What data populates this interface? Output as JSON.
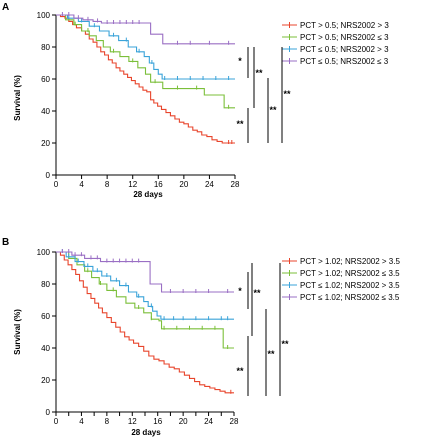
{
  "figure": {
    "panels": [
      {
        "letter": "A",
        "chart_data": {
          "type": "line",
          "subtype": "kaplan-meier",
          "xlabel": "28 days",
          "ylabel": "Survival (%)",
          "xlim": [
            0,
            28
          ],
          "ylim": [
            0,
            100
          ],
          "x_ticks": [
            0,
            4,
            8,
            12,
            16,
            20,
            24,
            28
          ],
          "y_ticks": [
            0,
            20,
            40,
            60,
            80,
            100
          ],
          "grid": false,
          "legend_position": "top-right",
          "series": [
            {
              "name": "PCT > 0.5; NRS2002 > 3",
              "color": "#e8452c",
              "points": [
                [
                  0,
                  100
                ],
                [
                  0.7,
                  99
                ],
                [
                  1.4,
                  98
                ],
                [
                  2,
                  96
                ],
                [
                  2.6,
                  94
                ],
                [
                  3.2,
                  92
                ],
                [
                  4,
                  90
                ],
                [
                  4.6,
                  88
                ],
                [
                  5.2,
                  85
                ],
                [
                  5.8,
                  83
                ],
                [
                  6.4,
                  80
                ],
                [
                  7,
                  77
                ],
                [
                  7.6,
                  75
                ],
                [
                  8.2,
                  72
                ],
                [
                  8.8,
                  70
                ],
                [
                  9.4,
                  67
                ],
                [
                  10,
                  65
                ],
                [
                  10.6,
                  63
                ],
                [
                  11.2,
                  61
                ],
                [
                  11.8,
                  59
                ],
                [
                  12.4,
                  57
                ],
                [
                  13,
                  55
                ],
                [
                  13.6,
                  53
                ],
                [
                  14.2,
                  52
                ],
                [
                  14.8,
                  47
                ],
                [
                  15.3,
                  45
                ],
                [
                  15.9,
                  43
                ],
                [
                  16.5,
                  41
                ],
                [
                  17.2,
                  39
                ],
                [
                  17.9,
                  37
                ],
                [
                  18.6,
                  35
                ],
                [
                  19.3,
                  33
                ],
                [
                  20,
                  32
                ],
                [
                  20.7,
                  30
                ],
                [
                  21.4,
                  28
                ],
                [
                  22.1,
                  27
                ],
                [
                  22.8,
                  25
                ],
                [
                  23.6,
                  24
                ],
                [
                  24.4,
                  22
                ],
                [
                  25.2,
                  21
                ],
                [
                  26,
                  20
                ],
                [
                  28,
                  20
                ]
              ],
              "censor_x": [
                27,
                27.5
              ]
            },
            {
              "name": "PCT > 0.5; NRS2002 ≤ 3",
              "color": "#7bbf3a",
              "points": [
                [
                  0,
                  100
                ],
                [
                  1.5,
                  97
                ],
                [
                  2.8,
                  94
                ],
                [
                  4,
                  90
                ],
                [
                  5.2,
                  87
                ],
                [
                  6.3,
                  84
                ],
                [
                  7.4,
                  80
                ],
                [
                  8.5,
                  77
                ],
                [
                  10,
                  74
                ],
                [
                  11.4,
                  71
                ],
                [
                  12.8,
                  67
                ],
                [
                  14,
                  63
                ],
                [
                  14.8,
                  58
                ],
                [
                  16.2,
                  58
                ],
                [
                  16.7,
                  54
                ],
                [
                  22.8,
                  54
                ],
                [
                  23.2,
                  50
                ],
                [
                  26,
                  50
                ],
                [
                  26.3,
                  42
                ],
                [
                  28,
                  42
                ]
              ],
              "censor_x": [
                3,
                5,
                9,
                12,
                15.5,
                19,
                22,
                27
              ]
            },
            {
              "name": "PCT ≤ 0.5; NRS2002 > 3",
              "color": "#3aa3d9",
              "points": [
                [
                  0,
                  100
                ],
                [
                  1.8,
                  98
                ],
                [
                  3.5,
                  96
                ],
                [
                  5.2,
                  93
                ],
                [
                  6.8,
                  90
                ],
                [
                  8.3,
                  87
                ],
                [
                  9.8,
                  84
                ],
                [
                  11.3,
                  80
                ],
                [
                  12.6,
                  77
                ],
                [
                  13.8,
                  74
                ],
                [
                  14.6,
                  70
                ],
                [
                  15.3,
                  66
                ],
                [
                  16,
                  63
                ],
                [
                  16.6,
                  60
                ],
                [
                  28,
                  60
                ]
              ],
              "censor_x": [
                2,
                4,
                6,
                9,
                11,
                13,
                15,
                17,
                19,
                21,
                23,
                25,
                27
              ]
            },
            {
              "name": "PCT ≤ 0.5; NRS2002 ≤ 3",
              "color": "#9a6fc4",
              "points": [
                [
                  0,
                  100
                ],
                [
                  2.8,
                  98
                ],
                [
                  4.2,
                  97
                ],
                [
                  5.8,
                  96
                ],
                [
                  7.1,
                  95
                ],
                [
                  14.2,
                  95
                ],
                [
                  14.8,
                  88
                ],
                [
                  16.2,
                  88
                ],
                [
                  16.7,
                  82
                ],
                [
                  28,
                  82
                ]
              ],
              "censor_x": [
                1,
                2,
                3.5,
                5,
                6.5,
                8,
                9,
                10,
                11,
                12,
                13,
                19,
                21,
                24,
                27
              ]
            }
          ],
          "significance": [
            "*",
            "**",
            "**",
            "**",
            "**"
          ]
        }
      },
      {
        "letter": "B",
        "chart_data": {
          "type": "line",
          "subtype": "kaplan-meier",
          "xlabel": "28 days",
          "ylabel": "Survival (%)",
          "xlim": [
            0,
            28
          ],
          "ylim": [
            0,
            100
          ],
          "x_ticks": [
            0,
            2,
            4,
            6,
            8,
            10,
            12,
            14,
            16,
            18,
            20,
            22,
            24,
            26,
            28
          ],
          "y_ticks": [
            0,
            20,
            40,
            60,
            80,
            100
          ],
          "grid": false,
          "legend_position": "top-right",
          "series": [
            {
              "name": "PCT > 1.02; NRS2002 > 3.5",
              "color": "#e8452c",
              "points": [
                [
                  0,
                  100
                ],
                [
                  0.7,
                  98
                ],
                [
                  1.3,
                  95
                ],
                [
                  1.9,
                  92
                ],
                [
                  2.5,
                  89
                ],
                [
                  3.1,
                  86
                ],
                [
                  3.7,
                  82
                ],
                [
                  4.3,
                  78
                ],
                [
                  4.9,
                  74
                ],
                [
                  5.5,
                  71
                ],
                [
                  6.1,
                  68
                ],
                [
                  6.7,
                  65
                ],
                [
                  7.3,
                  62
                ],
                [
                  8,
                  59
                ],
                [
                  8.7,
                  56
                ],
                [
                  9.4,
                  53
                ],
                [
                  10.1,
                  50
                ],
                [
                  10.8,
                  47
                ],
                [
                  11.5,
                  45
                ],
                [
                  12.2,
                  43
                ],
                [
                  13,
                  41
                ],
                [
                  13.8,
                  38
                ],
                [
                  14.6,
                  35
                ],
                [
                  15.4,
                  33
                ],
                [
                  16.2,
                  32
                ],
                [
                  17,
                  30
                ],
                [
                  17.8,
                  28
                ],
                [
                  18.6,
                  27
                ],
                [
                  19.4,
                  25
                ],
                [
                  20.2,
                  23
                ],
                [
                  21,
                  21
                ],
                [
                  21.8,
                  19
                ],
                [
                  22.6,
                  17
                ],
                [
                  23.4,
                  16
                ],
                [
                  24.2,
                  15
                ],
                [
                  25,
                  14
                ],
                [
                  25.8,
                  13
                ],
                [
                  26.6,
                  12
                ],
                [
                  28,
                  12
                ]
              ],
              "censor_x": [
                27.5
              ]
            },
            {
              "name": "PCT > 1.02; NRS2002 ≤ 3.5",
              "color": "#7bbf3a",
              "points": [
                [
                  0,
                  100
                ],
                [
                  2,
                  96
                ],
                [
                  3.3,
                  92
                ],
                [
                  4.5,
                  88
                ],
                [
                  5.6,
                  84
                ],
                [
                  6.8,
                  80
                ],
                [
                  8,
                  76
                ],
                [
                  9.5,
                  72
                ],
                [
                  11,
                  68
                ],
                [
                  12.4,
                  65
                ],
                [
                  13.8,
                  62
                ],
                [
                  15,
                  58
                ],
                [
                  16.2,
                  57
                ],
                [
                  16.6,
                  52
                ],
                [
                  26,
                  52
                ],
                [
                  26.3,
                  40
                ],
                [
                  28,
                  40
                ]
              ],
              "censor_x": [
                3,
                5,
                7,
                9,
                13,
                15,
                17,
                19,
                21,
                23,
                25,
                27
              ]
            },
            {
              "name": "PCT ≤ 1.02; NRS2002 > 3.5",
              "color": "#3aa3d9",
              "points": [
                [
                  0,
                  100
                ],
                [
                  1.6,
                  97
                ],
                [
                  3,
                  94
                ],
                [
                  4.4,
                  91
                ],
                [
                  5.8,
                  88
                ],
                [
                  7.2,
                  85
                ],
                [
                  8.6,
                  82
                ],
                [
                  10,
                  79
                ],
                [
                  11.4,
                  75
                ],
                [
                  12.7,
                  72
                ],
                [
                  13.8,
                  69
                ],
                [
                  14.5,
                  66
                ],
                [
                  15.2,
                  63
                ],
                [
                  15.9,
                  60
                ],
                [
                  16.5,
                  58
                ],
                [
                  28,
                  58
                ]
              ],
              "censor_x": [
                1,
                2,
                3.5,
                5,
                6.5,
                8,
                9.5,
                11,
                13,
                15,
                17,
                18.5,
                20,
                22,
                24,
                26,
                27
              ]
            },
            {
              "name": "PCT ≤ 1.02; NRS2002 ≤ 3.5",
              "color": "#9a6fc4",
              "points": [
                [
                  0,
                  100
                ],
                [
                  2.5,
                  98
                ],
                [
                  4.5,
                  96
                ],
                [
                  7,
                  94
                ],
                [
                  14.2,
                  94
                ],
                [
                  14.8,
                  80
                ],
                [
                  16.2,
                  80
                ],
                [
                  16.6,
                  75
                ],
                [
                  28,
                  75
                ]
              ],
              "censor_x": [
                1,
                2,
                3,
                4,
                5.5,
                6.5,
                8,
                9,
                10,
                11,
                12,
                13,
                18,
                20,
                22,
                24,
                27
              ]
            }
          ],
          "significance": [
            "*",
            "**",
            "**",
            "**",
            "**"
          ]
        }
      }
    ]
  }
}
